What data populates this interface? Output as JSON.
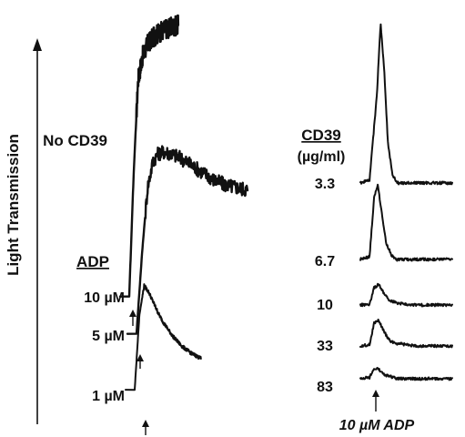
{
  "chart_data": [
    {
      "type": "line",
      "panel": "left",
      "ylabel": "Light Transmission",
      "group_label": "No CD39",
      "legend_title": "ADP",
      "series": [
        {
          "name": "10 µM",
          "label": "10 µM",
          "x": [
            0,
            0.05,
            0.1,
            0.15,
            0.2,
            0.25,
            0.3,
            0.35,
            0.4,
            0.45,
            0.5,
            0.55,
            0.6,
            0.65,
            0.7,
            0.75,
            0.8,
            0.85,
            0.9,
            0.95,
            1.0
          ],
          "y": [
            0.02,
            0.45,
            0.78,
            0.86,
            0.9,
            0.92,
            0.935,
            0.945,
            0.955,
            0.96,
            0.965,
            0.97,
            0.975,
            0.978,
            0.98,
            0.982,
            0.985,
            0.987,
            0.99,
            0.992,
            0.995
          ],
          "noise": 0.035,
          "x_end": 0.55
        },
        {
          "name": "5 µM",
          "label": "5 µM",
          "x": [
            0,
            0.05,
            0.1,
            0.15,
            0.2,
            0.25,
            0.3,
            0.35,
            0.4,
            0.45,
            0.5,
            0.55,
            0.6,
            0.65,
            0.7,
            0.75,
            0.8,
            0.85,
            0.9,
            0.95,
            1.0
          ],
          "y": [
            0.02,
            0.35,
            0.62,
            0.73,
            0.76,
            0.765,
            0.76,
            0.75,
            0.74,
            0.725,
            0.71,
            0.695,
            0.68,
            0.665,
            0.65,
            0.64,
            0.63,
            0.625,
            0.62,
            0.615,
            0.61
          ],
          "noise": 0.03,
          "x_end": 1.0
        },
        {
          "name": "1 µM",
          "label": "1 µM",
          "x": [
            0,
            0.05,
            0.1,
            0.15,
            0.2,
            0.25,
            0.3,
            0.35,
            0.4,
            0.45,
            0.5,
            0.55,
            0.6,
            0.65,
            0.7,
            0.75,
            0.8,
            0.85,
            0.9,
            0.95,
            1.0
          ],
          "y": [
            0.02,
            0.45,
            0.62,
            0.58,
            0.52,
            0.46,
            0.41,
            0.37,
            0.33,
            0.3,
            0.27,
            0.25,
            0.23,
            0.215,
            0.2,
            0.19,
            0.18,
            0.175,
            0.17,
            0.165,
            0.16
          ],
          "noise": 0.01,
          "x_end": 0.7
        }
      ]
    },
    {
      "type": "line",
      "panel": "right",
      "legend_title": "CD39",
      "legend_unit": "(µg/ml)",
      "xlabel": "10 µM ADP",
      "series": [
        {
          "name": "3.3",
          "label": "3.3",
          "x": [
            0,
            0.1,
            0.18,
            0.22,
            0.26,
            0.3,
            0.35,
            0.4,
            0.5,
            0.6,
            0.7,
            0.8,
            0.9,
            1.0
          ],
          "y": [
            0,
            0.02,
            0.55,
            1.0,
            0.7,
            0.25,
            0.05,
            0.0,
            0.0,
            0.0,
            0.0,
            0.0,
            0.0,
            0.0
          ]
        },
        {
          "name": "6.7",
          "label": "6.7",
          "x": [
            0,
            0.1,
            0.15,
            0.19,
            0.23,
            0.28,
            0.34,
            0.4,
            0.5,
            0.6,
            0.7,
            0.8,
            0.9,
            1.0
          ],
          "y": [
            0,
            0.02,
            0.45,
            0.55,
            0.35,
            0.12,
            0.03,
            0.0,
            0.0,
            0.0,
            0.0,
            0.0,
            0.0,
            0.0
          ]
        },
        {
          "name": "10",
          "label": "10",
          "x": [
            0,
            0.1,
            0.15,
            0.2,
            0.26,
            0.32,
            0.4,
            0.5,
            0.6,
            0.7,
            0.8,
            0.9,
            1.0
          ],
          "y": [
            0,
            0.01,
            0.2,
            0.24,
            0.13,
            0.05,
            0.02,
            0.01,
            0.0,
            0.0,
            0.0,
            0.0,
            0.0
          ]
        },
        {
          "name": "33",
          "label": "33",
          "x": [
            0,
            0.1,
            0.15,
            0.2,
            0.26,
            0.32,
            0.4,
            0.5,
            0.6,
            0.7,
            0.8,
            0.9,
            1.0
          ],
          "y": [
            0,
            0.01,
            0.18,
            0.2,
            0.11,
            0.04,
            0.02,
            0.01,
            0.0,
            0.0,
            0.0,
            0.0,
            0.0
          ]
        },
        {
          "name": "83",
          "label": "83",
          "x": [
            0,
            0.1,
            0.14,
            0.18,
            0.24,
            0.3,
            0.4,
            0.5,
            0.6,
            0.7,
            0.8,
            0.9,
            1.0
          ],
          "y": [
            0,
            0.01,
            0.06,
            0.08,
            0.04,
            0.02,
            0.0,
            0.0,
            0.0,
            0.0,
            0.0,
            0.0,
            0.0
          ]
        }
      ]
    }
  ]
}
